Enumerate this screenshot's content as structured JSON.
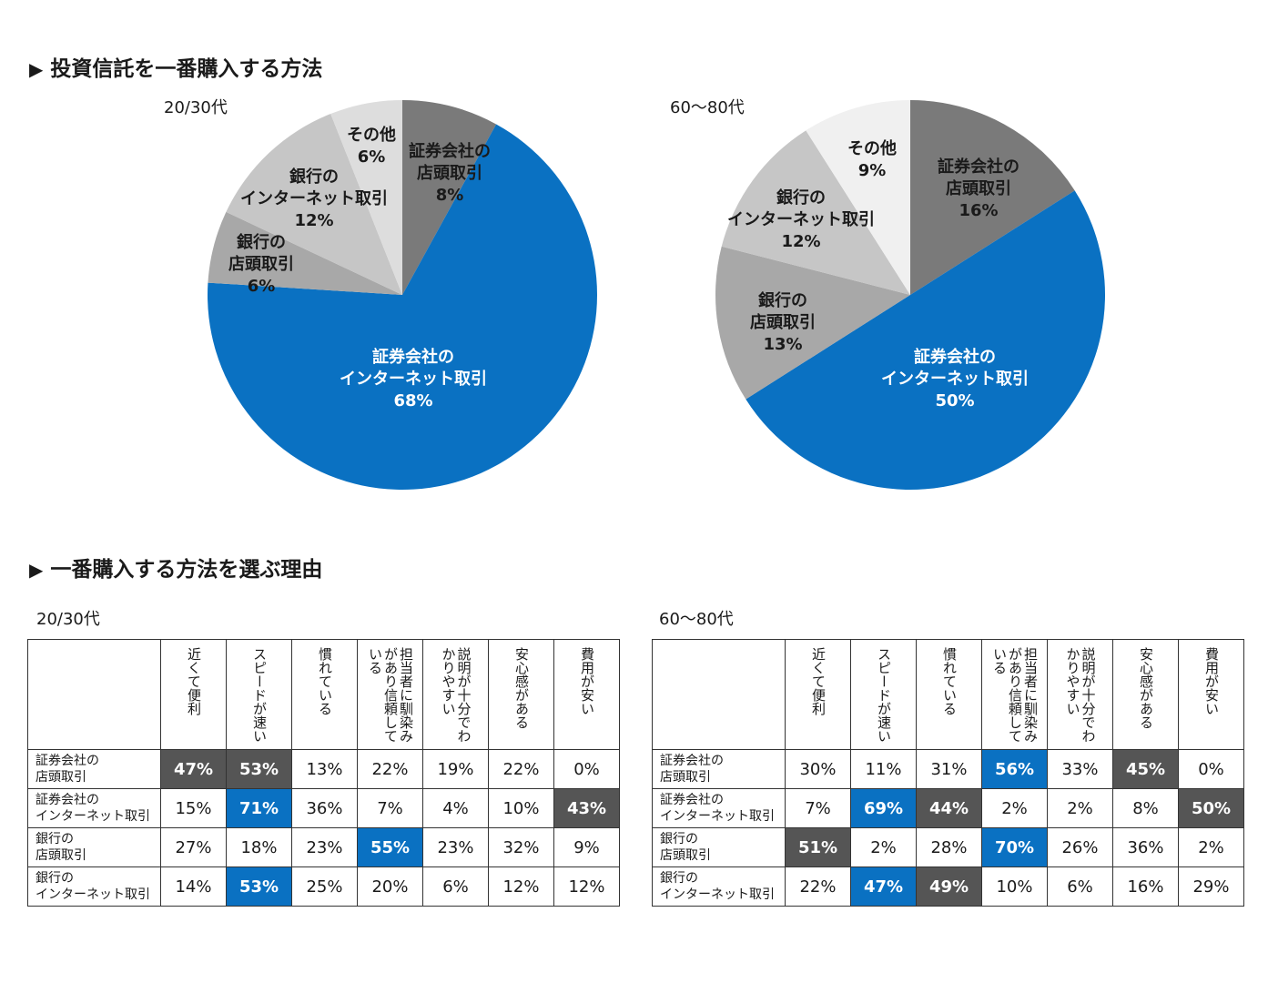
{
  "section1": {
    "marker": "▶",
    "title": "投資信託を一番購入する方法"
  },
  "section2": {
    "marker": "▶",
    "title": "一番購入する方法を選ぶ理由"
  },
  "colors": {
    "blue": "#0a71c2",
    "dark": "#555555",
    "gray1": "#7a7a7a",
    "gray2": "#a8a8a8",
    "gray3": "#c6c6c6",
    "gray4": "#dddddd",
    "gray5": "#f0f0f0"
  },
  "chart_data": [
    {
      "type": "pie",
      "title": "20/30代",
      "slices": [
        {
          "label": "証券会社の店頭取引",
          "value": 8,
          "display": "8%",
          "color": "#7a7a7a"
        },
        {
          "label": "証券会社のインターネット取引",
          "value": 68,
          "display": "68%",
          "color": "#0a71c2"
        },
        {
          "label": "銀行の店頭取引",
          "value": 6,
          "display": "6%",
          "color": "#a8a8a8"
        },
        {
          "label": "銀行のインターネット取引",
          "value": 12,
          "display": "12%",
          "color": "#c6c6c6"
        },
        {
          "label": "その他",
          "value": 6,
          "display": "6%",
          "color": "#dddddd"
        }
      ]
    },
    {
      "type": "pie",
      "title": "60〜80代",
      "slices": [
        {
          "label": "証券会社の店頭取引",
          "value": 16,
          "display": "16%",
          "color": "#7a7a7a"
        },
        {
          "label": "証券会社のインターネット取引",
          "value": 50,
          "display": "50%",
          "color": "#0a71c2"
        },
        {
          "label": "銀行の店頭取引",
          "value": 13,
          "display": "13%",
          "color": "#a8a8a8"
        },
        {
          "label": "銀行のインターネット取引",
          "value": 12,
          "display": "12%",
          "color": "#c6c6c6"
        },
        {
          "label": "その他",
          "value": 9,
          "display": "9%",
          "color": "#f0f0f0"
        }
      ]
    },
    {
      "type": "table",
      "title": "20/30代",
      "columns": [
        "近くて便利",
        "スピードが速い",
        "慣れている",
        "担当者に馴染みがあり信頼している",
        "説明が十分でわかりやすい",
        "安心感がある",
        "費用が安い"
      ],
      "rows": [
        {
          "label": "証券会社の店頭取引",
          "values": [
            "47%",
            "53%",
            "13%",
            "22%",
            "19%",
            "22%",
            "0%"
          ],
          "highlight": [
            "dark",
            "dark",
            "",
            "",
            "",
            "",
            ""
          ]
        },
        {
          "label": "証券会社のインターネット取引",
          "values": [
            "15%",
            "71%",
            "36%",
            "7%",
            "4%",
            "10%",
            "43%"
          ],
          "highlight": [
            "",
            "blue",
            "",
            "",
            "",
            "",
            "dark"
          ]
        },
        {
          "label": "銀行の店頭取引",
          "values": [
            "27%",
            "18%",
            "23%",
            "55%",
            "23%",
            "32%",
            "9%"
          ],
          "highlight": [
            "",
            "",
            "",
            "blue",
            "",
            "",
            ""
          ]
        },
        {
          "label": "銀行のインターネット取引",
          "values": [
            "14%",
            "53%",
            "25%",
            "20%",
            "6%",
            "12%",
            "12%"
          ],
          "highlight": [
            "",
            "blue",
            "",
            "",
            "",
            "",
            ""
          ]
        }
      ]
    },
    {
      "type": "table",
      "title": "60〜80代",
      "columns": [
        "近くて便利",
        "スピードが速い",
        "慣れている",
        "担当者に馴染みがあり信頼している",
        "説明が十分でわかりやすい",
        "安心感がある",
        "費用が安い"
      ],
      "rows": [
        {
          "label": "証券会社の店頭取引",
          "values": [
            "30%",
            "11%",
            "31%",
            "56%",
            "33%",
            "45%",
            "0%"
          ],
          "highlight": [
            "",
            "",
            "",
            "blue",
            "",
            "dark",
            ""
          ]
        },
        {
          "label": "証券会社のインターネット取引",
          "values": [
            "7%",
            "69%",
            "44%",
            "2%",
            "2%",
            "8%",
            "50%"
          ],
          "highlight": [
            "",
            "blue",
            "dark",
            "",
            "",
            "",
            "dark"
          ]
        },
        {
          "label": "銀行の店頭取引",
          "values": [
            "51%",
            "2%",
            "28%",
            "70%",
            "26%",
            "36%",
            "2%"
          ],
          "highlight": [
            "dark",
            "",
            "",
            "blue",
            "",
            "",
            ""
          ]
        },
        {
          "label": "銀行のインターネット取引",
          "values": [
            "22%",
            "47%",
            "49%",
            "10%",
            "6%",
            "16%",
            "29%"
          ],
          "highlight": [
            "",
            "blue",
            "dark",
            "",
            "",
            "",
            ""
          ]
        }
      ]
    }
  ]
}
